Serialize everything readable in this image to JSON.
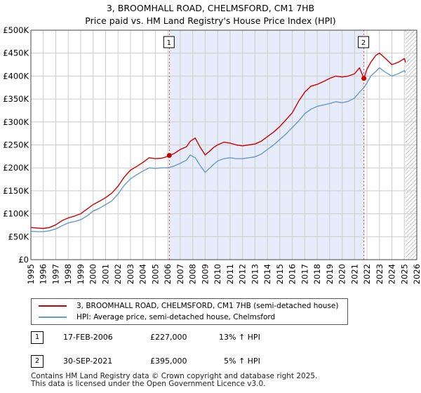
{
  "header": {
    "title_line1": "3, BROOMHALL ROAD, CHELMSFORD, CM1 7HB",
    "title_line2": "Price paid vs. HM Land Registry's House Price Index (HPI)"
  },
  "colors": {
    "property_line": "#cc0000",
    "hpi_line": "#6699cc",
    "shade": "#e6ecfa",
    "hatch": "#999999",
    "grid": "#cccccc",
    "marker_vline": "#dd4444"
  },
  "chart_data": {
    "type": "line",
    "title": "3, BROOMHALL ROAD, CHELMSFORD, CM1 7HB — Price paid vs. HM Land Registry's House Price Index (HPI)",
    "xlabel": "",
    "ylabel": "",
    "xlim": [
      1995,
      2026
    ],
    "ylim": [
      0,
      500000
    ],
    "x_ticks": [
      1995,
      1996,
      1997,
      1998,
      1999,
      2000,
      2001,
      2002,
      2003,
      2004,
      2005,
      2006,
      2007,
      2008,
      2009,
      2010,
      2011,
      2012,
      2013,
      2014,
      2015,
      2016,
      2017,
      2018,
      2019,
      2020,
      2021,
      2022,
      2023,
      2024,
      2025,
      2026
    ],
    "y_ticks": [
      0,
      50000,
      100000,
      150000,
      200000,
      250000,
      300000,
      350000,
      400000,
      450000,
      500000
    ],
    "y_tick_labels": [
      "£0",
      "£50K",
      "£100K",
      "£150K",
      "£200K",
      "£250K",
      "£300K",
      "£350K",
      "£400K",
      "£450K",
      "£500K"
    ],
    "grid": true,
    "shaded_region": [
      2006.12,
      2021.75
    ],
    "hatched_from": 2025.1,
    "series": [
      {
        "name": "3, BROOMHALL ROAD, CHELMSFORD, CM1 7HB (semi-detached house)",
        "color": "#cc0000",
        "x": [
          1995,
          1995.5,
          1996,
          1996.5,
          1997,
          1997.5,
          1998,
          1998.5,
          1999,
          1999.5,
          2000,
          2000.5,
          2001,
          2001.5,
          2002,
          2002.5,
          2003,
          2003.5,
          2004,
          2004.5,
          2005,
          2005.5,
          2006,
          2006.12,
          2006.5,
          2007,
          2007.5,
          2007.8,
          2008.2,
          2008.6,
          2009,
          2009.3,
          2009.7,
          2010,
          2010.5,
          2011,
          2011.5,
          2012,
          2012.5,
          2013,
          2013.5,
          2014,
          2014.5,
          2015,
          2015.5,
          2016,
          2016.5,
          2017,
          2017.5,
          2018,
          2018.5,
          2019,
          2019.5,
          2020,
          2020.5,
          2021,
          2021.4,
          2021.75,
          2022,
          2022.3,
          2022.7,
          2023,
          2023.5,
          2024,
          2024.5,
          2025,
          2025.1
        ],
        "y": [
          70000,
          69000,
          68000,
          70000,
          76000,
          85000,
          91000,
          95000,
          100000,
          110000,
          120000,
          127000,
          135000,
          145000,
          160000,
          180000,
          195000,
          203000,
          212000,
          222000,
          220000,
          221000,
          225000,
          227000,
          231000,
          240000,
          246000,
          258000,
          265000,
          245000,
          228000,
          235000,
          245000,
          250000,
          256000,
          254000,
          250000,
          248000,
          250000,
          252000,
          258000,
          268000,
          278000,
          290000,
          305000,
          320000,
          345000,
          365000,
          378000,
          382000,
          388000,
          395000,
          400000,
          398000,
          400000,
          405000,
          418000,
          395000,
          415000,
          430000,
          445000,
          450000,
          438000,
          425000,
          430000,
          438000,
          430000
        ]
      },
      {
        "name": "HPI: Average price, semi-detached house, Chelmsford",
        "color": "#6699cc",
        "x": [
          1995,
          1995.5,
          1996,
          1996.5,
          1997,
          1997.5,
          1998,
          1998.5,
          1999,
          1999.5,
          2000,
          2000.5,
          2001,
          2001.5,
          2002,
          2002.5,
          2003,
          2003.5,
          2004,
          2004.5,
          2005,
          2005.5,
          2006,
          2006.5,
          2007,
          2007.5,
          2007.8,
          2008.2,
          2008.6,
          2009,
          2009.3,
          2009.7,
          2010,
          2010.5,
          2011,
          2011.5,
          2012,
          2012.5,
          2013,
          2013.5,
          2014,
          2014.5,
          2015,
          2015.5,
          2016,
          2016.5,
          2017,
          2017.5,
          2018,
          2018.5,
          2019,
          2019.5,
          2020,
          2020.5,
          2021,
          2021.4,
          2021.75,
          2022,
          2022.3,
          2022.7,
          2023,
          2023.5,
          2024,
          2024.5,
          2025,
          2025.1
        ],
        "y": [
          62000,
          61000,
          61000,
          63000,
          67000,
          74000,
          80000,
          83000,
          87000,
          95000,
          106000,
          112000,
          120000,
          128000,
          143000,
          162000,
          176000,
          185000,
          193000,
          200000,
          199000,
          200000,
          200000,
          204000,
          210000,
          217000,
          228000,
          222000,
          205000,
          190000,
          198000,
          208000,
          215000,
          220000,
          222000,
          220000,
          220000,
          222000,
          224000,
          230000,
          240000,
          250000,
          262000,
          274000,
          288000,
          302000,
          318000,
          328000,
          334000,
          337000,
          340000,
          344000,
          342000,
          345000,
          352000,
          365000,
          375000,
          385000,
          400000,
          410000,
          418000,
          408000,
          400000,
          405000,
          412000,
          408000
        ]
      }
    ],
    "annotations": [
      {
        "label": "1",
        "x": 2006.12,
        "y": 227000
      },
      {
        "label": "2",
        "x": 2021.75,
        "y": 395000
      }
    ]
  },
  "legend": {
    "property_label": "3, BROOMHALL ROAD, CHELMSFORD, CM1 7HB (semi-detached house)",
    "hpi_label": "HPI: Average price, semi-detached house, Chelmsford"
  },
  "transactions": [
    {
      "num": "1",
      "date": "17-FEB-2006",
      "price": "£227,000",
      "hpi_change": "13% ↑ HPI"
    },
    {
      "num": "2",
      "date": "30-SEP-2021",
      "price": "£395,000",
      "hpi_change": "5% ↑ HPI"
    }
  ],
  "footer": {
    "line1": "Contains HM Land Registry data © Crown copyright and database right 2025.",
    "line2": "This data is licensed under the Open Government Licence v3.0."
  }
}
